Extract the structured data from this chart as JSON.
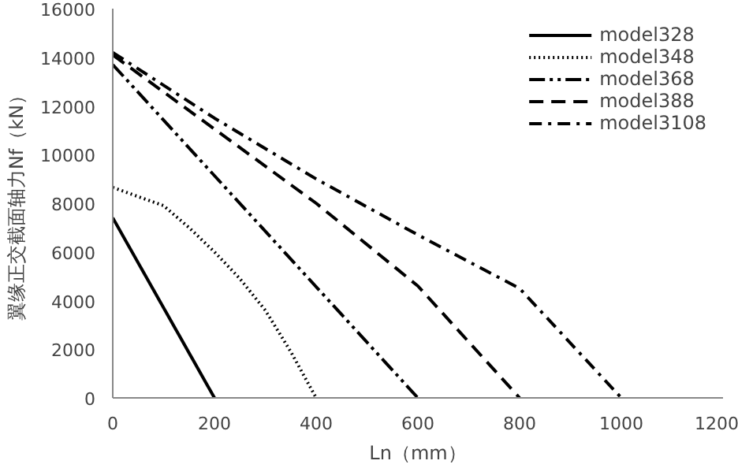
{
  "chart_data": {
    "type": "line",
    "xlabel": "Ln（mm）",
    "ylabel": "翼缘正交截面轴力Nf（kN）",
    "xlim": [
      0,
      1200
    ],
    "ylim": [
      0,
      16000
    ],
    "xticks": [
      0,
      200,
      400,
      600,
      800,
      1000,
      1200
    ],
    "yticks": [
      0,
      2000,
      4000,
      6000,
      8000,
      10000,
      12000,
      14000,
      16000
    ],
    "grid": false,
    "legend": "top right",
    "marker": "none",
    "series": [
      {
        "name": "model328",
        "color": "#000000",
        "line_style": "solid",
        "x": [
          0,
          200
        ],
        "values": [
          7400,
          0
        ]
      },
      {
        "name": "model348",
        "color": "#000000",
        "line_style": "dotted",
        "x": [
          0,
          100,
          150,
          200,
          250,
          300,
          350,
          400
        ],
        "values": [
          8650,
          7900,
          7000,
          6000,
          4900,
          3600,
          1900,
          0
        ]
      },
      {
        "name": "model368",
        "color": "#000000",
        "line_style": "dashdotdot",
        "x": [
          0,
          600
        ],
        "values": [
          13700,
          0
        ]
      },
      {
        "name": "model388",
        "color": "#000000",
        "line_style": "dashed",
        "x": [
          0,
          400,
          600,
          800
        ],
        "values": [
          14100,
          8000,
          4600,
          0
        ]
      },
      {
        "name": "model3108",
        "color": "#000000",
        "line_style": "dashdot",
        "x": [
          0,
          200,
          400,
          600,
          800,
          1000
        ],
        "values": [
          14200,
          11500,
          9000,
          6700,
          4500,
          0
        ]
      }
    ]
  }
}
